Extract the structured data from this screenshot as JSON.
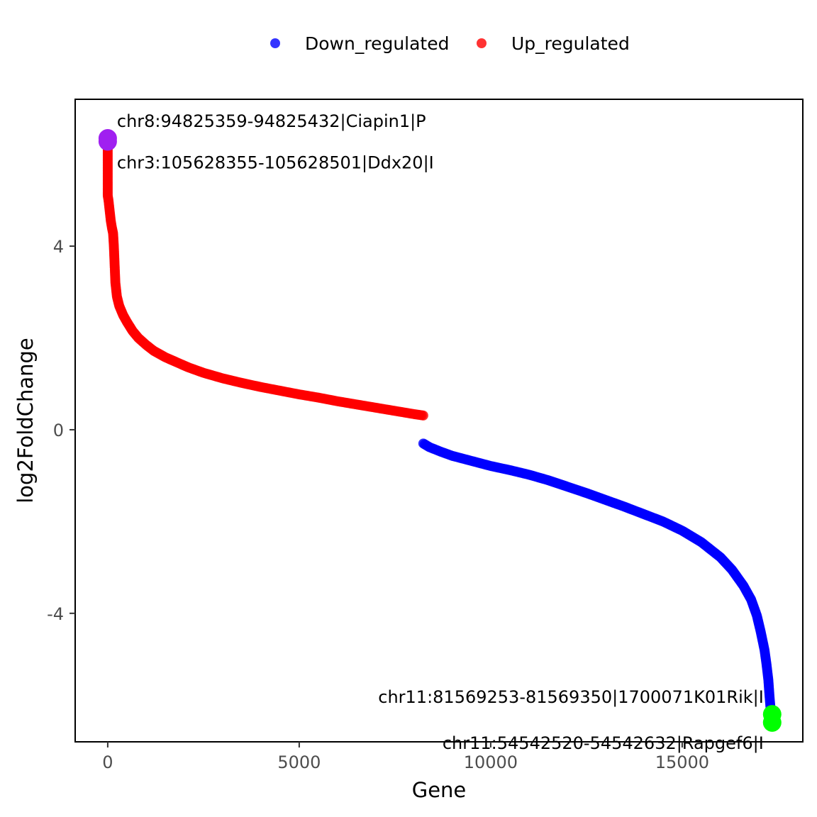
{
  "chart_data": {
    "type": "scatter",
    "title": "",
    "xlabel": "Gene",
    "ylabel": "log2FoldChange",
    "xlim": [
      -850,
      18150
    ],
    "ylim": [
      -6.8,
      7.2
    ],
    "x_ticks": [
      0,
      5000,
      10000,
      15000
    ],
    "y_ticks": [
      -4,
      0,
      4
    ],
    "x_tick_labels": [
      "0",
      "5000",
      "10000",
      "15000"
    ],
    "y_tick_labels": [
      "-4",
      "0",
      "4"
    ],
    "grid": false,
    "legend": {
      "position": "top",
      "entries": [
        {
          "label": "Down_regulated",
          "color": "#0000ff"
        },
        {
          "label": "Up_regulated",
          "color": "#ff0000"
        }
      ]
    },
    "series": [
      {
        "name": "Up_regulated",
        "color": "#ff0000",
        "points": [
          [
            0,
            6.35
          ],
          [
            0,
            6.3
          ],
          [
            0,
            5.75
          ],
          [
            0,
            5.4
          ],
          [
            0,
            5.3
          ],
          [
            0,
            5.2
          ],
          [
            0,
            5.1
          ],
          [
            20,
            5.0
          ],
          [
            40,
            4.85
          ],
          [
            60,
            4.7
          ],
          [
            80,
            4.55
          ],
          [
            110,
            4.4
          ],
          [
            140,
            4.28
          ],
          [
            160,
            4.0
          ],
          [
            180,
            3.6
          ],
          [
            200,
            3.2
          ],
          [
            240,
            2.9
          ],
          [
            300,
            2.7
          ],
          [
            400,
            2.5
          ],
          [
            500,
            2.35
          ],
          [
            650,
            2.15
          ],
          [
            800,
            2.0
          ],
          [
            1000,
            1.85
          ],
          [
            1200,
            1.72
          ],
          [
            1500,
            1.58
          ],
          [
            1800,
            1.47
          ],
          [
            2100,
            1.36
          ],
          [
            2500,
            1.24
          ],
          [
            3000,
            1.12
          ],
          [
            3500,
            1.02
          ],
          [
            4000,
            0.93
          ],
          [
            4500,
            0.85
          ],
          [
            5000,
            0.77
          ],
          [
            5500,
            0.7
          ],
          [
            6000,
            0.62
          ],
          [
            6500,
            0.55
          ],
          [
            7000,
            0.48
          ],
          [
            7500,
            0.41
          ],
          [
            8000,
            0.34
          ],
          [
            8240,
            0.31
          ]
        ]
      },
      {
        "name": "Down_regulated",
        "color": "#0000ff",
        "points": [
          [
            8240,
            -0.3
          ],
          [
            8400,
            -0.38
          ],
          [
            8700,
            -0.48
          ],
          [
            9000,
            -0.57
          ],
          [
            9500,
            -0.68
          ],
          [
            10000,
            -0.79
          ],
          [
            10500,
            -0.88
          ],
          [
            11000,
            -0.98
          ],
          [
            11500,
            -1.1
          ],
          [
            12000,
            -1.24
          ],
          [
            12500,
            -1.38
          ],
          [
            13000,
            -1.53
          ],
          [
            13500,
            -1.68
          ],
          [
            14000,
            -1.84
          ],
          [
            14500,
            -2.0
          ],
          [
            15000,
            -2.2
          ],
          [
            15500,
            -2.45
          ],
          [
            16000,
            -2.78
          ],
          [
            16300,
            -3.05
          ],
          [
            16600,
            -3.4
          ],
          [
            16800,
            -3.7
          ],
          [
            16950,
            -4.05
          ],
          [
            17050,
            -4.4
          ],
          [
            17150,
            -4.8
          ],
          [
            17200,
            -5.1
          ],
          [
            17250,
            -5.45
          ],
          [
            17280,
            -5.8
          ],
          [
            17310,
            -6.1
          ],
          [
            17330,
            -6.22
          ],
          [
            17340,
            -6.35
          ],
          [
            17350,
            -6.45
          ]
        ]
      }
    ],
    "highlighted_points": [
      {
        "label": "chr8:94825359-94825432|Ciapin1|P",
        "x": 0,
        "y": 6.35,
        "color": "#a020f0"
      },
      {
        "label": "chr3:105628355-105628501|Ddx20|I",
        "x": 0,
        "y": 6.28,
        "color": "#a020f0"
      },
      {
        "label": "chr11:81569253-81569350|1700071K01Rik|I",
        "x": 17350,
        "y": -6.2,
        "color": "#00ff00"
      },
      {
        "label": "chr11:54542520-54542632|Rapgef6|I",
        "x": 17350,
        "y": -6.38,
        "color": "#00ff00"
      }
    ]
  }
}
